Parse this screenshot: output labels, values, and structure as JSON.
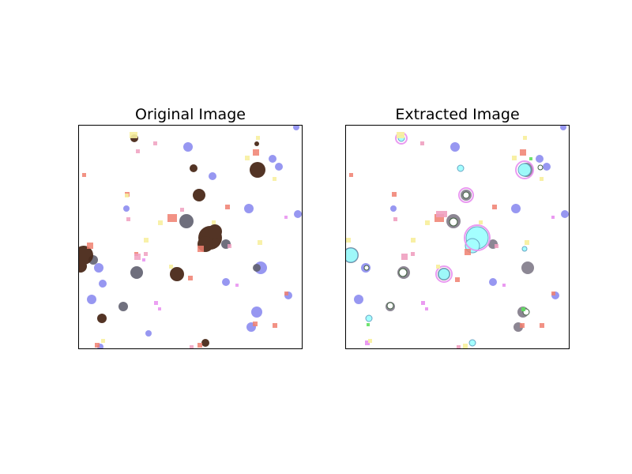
{
  "figure": {
    "left_title": "Original Image",
    "right_title": "Extracted Image"
  },
  "colors": {
    "background": "#ffffff",
    "axes_border": "#000000",
    "blob_blue": "#8c8cf0",
    "blob_dark_brown": "#4a2a1a",
    "blob_salmon": "#f08070",
    "blob_pink": "#f0a0c0",
    "blob_yellow": "#f8f0a0",
    "blob_magenta": "#e890f0",
    "blob_gray": "#807a88",
    "extract_cyan": "#a0ffff",
    "extract_green": "#60e060"
  }
}
